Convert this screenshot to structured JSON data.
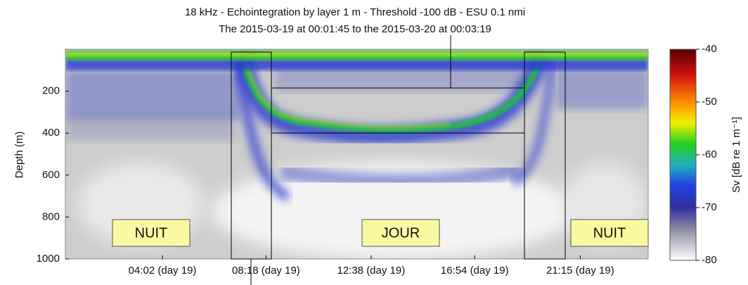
{
  "chart_data": {
    "type": "echogram",
    "title": "18 kHz - Echointegration by layer 1 m - Threshold -100 dB - ESU 0.1 nmi",
    "subtitle": "The 2015-03-19 at 00:01:45 to the 2015-03-20 at 00:03:19",
    "y_label": "Depth (m)",
    "ylim": [
      0,
      1000
    ],
    "y_inverted": true,
    "yticks": [
      200,
      400,
      600,
      800,
      1000
    ],
    "xlim": [
      0.03,
      24.05
    ],
    "xticks": [
      {
        "value": 4.03,
        "label": "04:02 (day 19)"
      },
      {
        "value": 8.3,
        "label": "08:18 (day 19)"
      },
      {
        "value": 12.63,
        "label": "12:38 (day 19)"
      },
      {
        "value": 16.9,
        "label": "16:54 (day 19)"
      },
      {
        "value": 21.25,
        "label": "21:15 (day 19)"
      }
    ],
    "colorbar": {
      "label": "Sv [dB re 1 m⁻¹]",
      "clim": [
        -80,
        -40
      ],
      "ticks": [
        -40,
        -50,
        -60,
        -70,
        -80
      ]
    },
    "annotations": [
      "NUIT",
      "JOUR",
      "NUIT"
    ]
  }
}
